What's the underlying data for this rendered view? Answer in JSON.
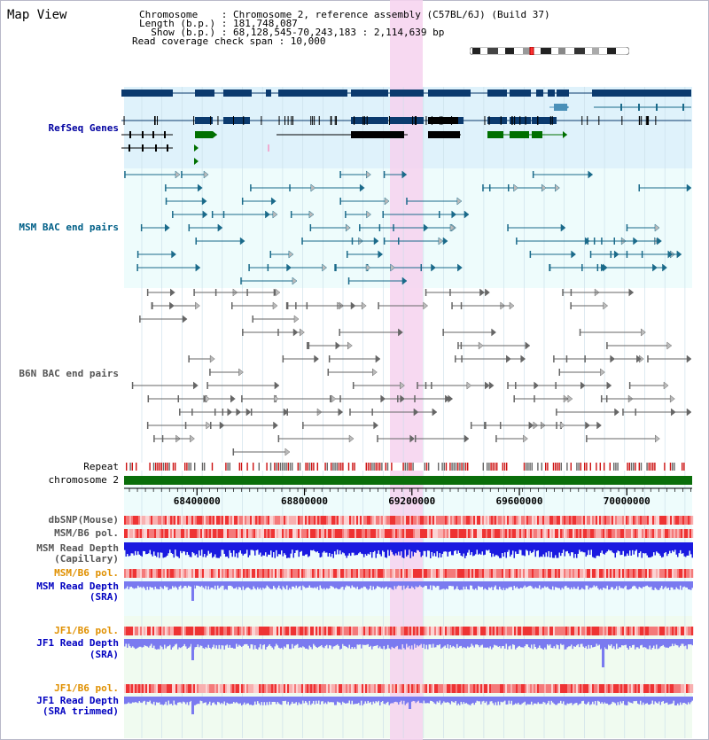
{
  "header": {
    "title": "Map View",
    "chromosome_line": "Chromosome    : Chromosome 2, reference assembly (C57BL/6J) (Build 37)",
    "length_line": "Length (b.p.) : 181,748,087",
    "show_line": "  Show (b.p.) : 68,128,545-70,243,183 : 2,114,639 bp",
    "coverage_line": "Read coverage check span : 10,000"
  },
  "tracks": {
    "refseq": "RefSeq Genes",
    "msm_bac": "MSM BAC end pairs",
    "b6n_bac": "B6N BAC end pairs",
    "repeat": "Repeat",
    "chromosome": "chromosome 2",
    "dbsnp": "dbSNP(Mouse)",
    "msm_b6_pol_1": "MSM/B6 pol.",
    "msm_depth_cap_1": "MSM Read Depth",
    "msm_depth_cap_2": "(Capillary)",
    "msm_b6_pol_2": "MSM/B6 pol.",
    "msm_depth_sra_1": "MSM Read Depth",
    "msm_depth_sra_2": "(SRA)",
    "jf1_b6_pol_1": "JF1/B6 pol.",
    "jf1_depth_sra_1": "JF1 Read Depth",
    "jf1_depth_sra_2": "(SRA)",
    "jf1_b6_pol_2": "JF1/B6 pol.",
    "jf1_depth_trim_1": "JF1 Read Depth",
    "jf1_depth_trim_2": "(SRA trimmed)"
  },
  "axis": {
    "ticks": [
      "68400000",
      "68800000",
      "69200000",
      "69600000",
      "70000000"
    ],
    "tick_values": [
      68400000,
      68800000,
      69200000,
      69600000,
      70000000
    ],
    "range": [
      68128545,
      70243183
    ]
  },
  "colors": {
    "refseq_bg": "#dff2fb",
    "bac_bg": "#eefcfc",
    "highlight": "#f6d2ee",
    "gene_dark": "#0b3a6e",
    "gene_mid": "#4a90b8",
    "gene_green": "#007000",
    "msm": "#1a6a8a",
    "b6n": "#666666",
    "chromosome": "#0a6e0a",
    "depth_cap": "#1a1ae0",
    "depth_sra": "#7a7af0"
  }
}
